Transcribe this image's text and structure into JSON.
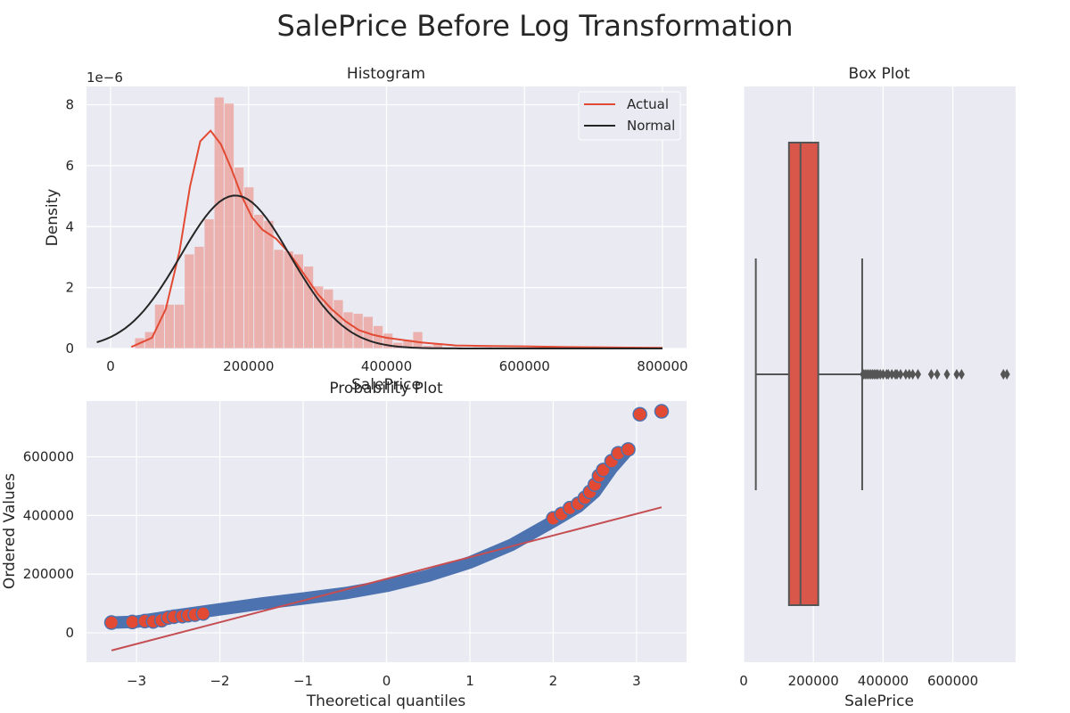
{
  "figure": {
    "title": "SalePrice Before Log Transformation"
  },
  "chart_data": [
    {
      "type": "bar",
      "subtype": "histogram-with-density",
      "title": "Histogram",
      "xlabel": "SalePrice",
      "ylabel": "Density",
      "y_offset_label": "1e−6",
      "xlim": [
        -35000,
        835000
      ],
      "ylim": [
        0,
        8.6
      ],
      "y_unit_multiplier": "1e-6",
      "xticks": [
        0,
        200000,
        400000,
        600000,
        800000
      ],
      "xtick_labels": [
        "0",
        "200000",
        "400000",
        "600000",
        "800000"
      ],
      "yticks": [
        0,
        2,
        4,
        6,
        8
      ],
      "ytick_labels": [
        "0",
        "2",
        "4",
        "6",
        "8"
      ],
      "bins": {
        "start": 34900,
        "width": 14400,
        "heights": [
          0.35,
          0.55,
          1.45,
          1.45,
          1.45,
          3.1,
          3.35,
          4.25,
          8.25,
          8.05,
          5.95,
          5.3,
          4.4,
          4.2,
          3.25,
          3.2,
          3.1,
          2.7,
          2.05,
          1.95,
          1.6,
          1.2,
          1.15,
          1.05,
          0.75,
          0.5,
          0.2,
          0.3,
          0.55,
          0.1,
          0.15,
          0.05,
          0.05,
          0.0,
          0.05,
          0.05,
          0.0,
          0.0,
          0.0,
          0.0,
          0.05,
          0.0,
          0.05,
          0.0,
          0.0,
          0.0,
          0.0,
          0.0,
          0.0,
          0.0
        ]
      },
      "series": [
        {
          "name": "Actual",
          "color": "#e24a33",
          "x": [
            30000,
            60000,
            80000,
            100000,
            115000,
            130000,
            145000,
            160000,
            175000,
            190000,
            205000,
            220000,
            240000,
            260000,
            280000,
            300000,
            320000,
            340000,
            360000,
            380000,
            400000,
            450000,
            500000,
            550000,
            600000,
            650000,
            700000,
            750000,
            800000
          ],
          "y": [
            0.05,
            0.35,
            1.3,
            3.2,
            5.3,
            6.8,
            7.15,
            6.7,
            5.9,
            5.0,
            4.3,
            3.9,
            3.6,
            3.1,
            2.45,
            1.8,
            1.3,
            0.9,
            0.6,
            0.45,
            0.35,
            0.2,
            0.1,
            0.08,
            0.07,
            0.05,
            0.04,
            0.03,
            0.02
          ]
        },
        {
          "name": "Normal",
          "color": "#262626",
          "mean": 180921,
          "std": 79443,
          "xrange": [
            -20000,
            800000
          ]
        }
      ],
      "legend": "top-right",
      "grid": true
    },
    {
      "type": "scatter",
      "subtype": "probability-plot",
      "title": "Probability Plot",
      "xlabel": "Theoretical quantiles",
      "ylabel": "Ordered Values",
      "xlim": [
        -3.6,
        3.6
      ],
      "ylim": [
        -100000,
        790000
      ],
      "xticks": [
        -3,
        -2,
        -1,
        0,
        1,
        2,
        3
      ],
      "xtick_labels": [
        "−3",
        "−2",
        "−1",
        "0",
        "1",
        "2",
        "3"
      ],
      "yticks": [
        0,
        200000,
        400000,
        600000
      ],
      "ytick_labels": [
        "0",
        "200000",
        "400000",
        "600000"
      ],
      "quantile_curve": {
        "x": [
          -3.3,
          -3.0,
          -2.5,
          -2.0,
          -1.5,
          -1.0,
          -0.5,
          0.0,
          0.5,
          1.0,
          1.5,
          2.0,
          2.3,
          2.5,
          2.7,
          2.9
        ],
        "y": [
          35000,
          38000,
          60000,
          80000,
          100000,
          117000,
          135000,
          160000,
          195000,
          240000,
          300000,
          380000,
          430000,
          480000,
          560000,
          625000
        ]
      },
      "outlier_points": {
        "x": [
          -3.3,
          -3.05,
          -2.9,
          -2.8,
          -2.7,
          -2.62,
          -2.55,
          -2.45,
          -2.38,
          -2.3,
          -2.2,
          2.0,
          2.1,
          2.2,
          2.3,
          2.38,
          2.44,
          2.5,
          2.55,
          2.6,
          2.7,
          2.78,
          2.9,
          3.04,
          3.3
        ],
        "y": [
          35000,
          37000,
          40000,
          39000,
          43000,
          52000,
          55000,
          57000,
          60000,
          62000,
          66000,
          390000,
          405000,
          425000,
          440000,
          460000,
          480000,
          505000,
          535000,
          555000,
          585000,
          612000,
          625000,
          745000,
          755000
        ]
      },
      "fit_line": {
        "x": [
          -3.3,
          3.3
        ],
        "y": [
          -60000,
          428000
        ],
        "color": "#c44e52"
      },
      "point_color": "#4c72b0",
      "outlier_fill": "#e24a33",
      "grid": true
    },
    {
      "type": "box",
      "title": "Box Plot",
      "xlabel": "SalePrice",
      "xlim": [
        0,
        780000
      ],
      "xticks": [
        0,
        200000,
        400000,
        600000
      ],
      "xtick_labels": [
        "0",
        "200000",
        "400000",
        "600000"
      ],
      "whisker_low": 34900,
      "q1": 129975,
      "median": 163000,
      "q3": 214000,
      "whisker_high": 340000,
      "fliers": [
        342000,
        345000,
        350000,
        355000,
        360000,
        365000,
        370000,
        375000,
        380000,
        385000,
        392000,
        400000,
        410000,
        415000,
        425000,
        435000,
        440000,
        450000,
        465000,
        475000,
        485000,
        500000,
        538000,
        555000,
        583000,
        611000,
        625000,
        745000,
        755000
      ],
      "box_color": "#d9574a",
      "grid": true
    }
  ]
}
